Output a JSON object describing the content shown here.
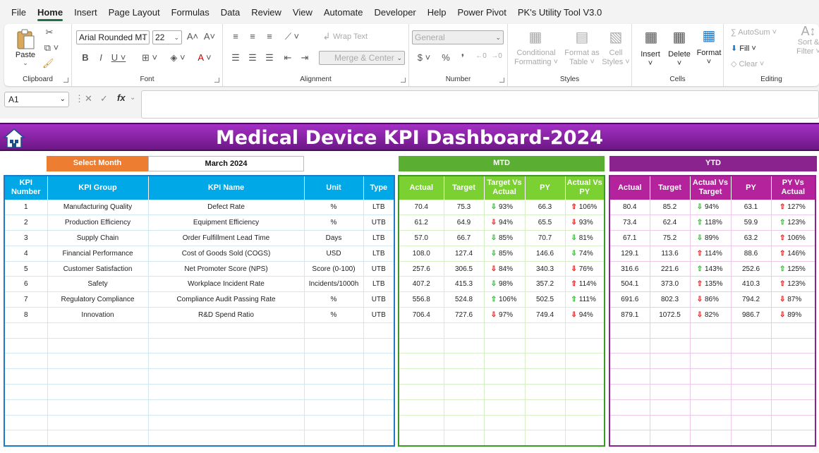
{
  "menu": [
    "File",
    "Home",
    "Insert",
    "Page Layout",
    "Formulas",
    "Data",
    "Review",
    "View",
    "Automate",
    "Developer",
    "Help",
    "Power Pivot",
    "PK's Utility Tool V3.0"
  ],
  "ribbon": {
    "clipboard": {
      "paste": "Paste",
      "label": "Clipboard"
    },
    "font": {
      "name": "Arial Rounded MT",
      "size": "22",
      "label": "Font"
    },
    "alignment": {
      "wrap": "Wrap Text",
      "merge": "Merge & Center",
      "label": "Alignment"
    },
    "number": {
      "format": "General",
      "label": "Number"
    },
    "styles": {
      "cond1": "Conditional",
      "cond2": "Formatting",
      "fat1": "Format as",
      "fat2": "Table",
      "cs1": "Cell",
      "cs2": "Styles",
      "label": "Styles"
    },
    "cells": {
      "insert": "Insert",
      "delete": "Delete",
      "format": "Format",
      "label": "Cells"
    },
    "editing": {
      "autosum": "AutoSum",
      "fill": "Fill",
      "clear": "Clear",
      "sort1": "Sort &",
      "sort2": "Filter",
      "label": "Editing"
    }
  },
  "formula_bar": {
    "name_box": "A1",
    "fx": "fx",
    "formula": ""
  },
  "dashboard": {
    "title": "Medical Device KPI Dashboard-2024",
    "select_month_label": "Select Month",
    "select_month_value": "March 2024",
    "mtd_label": "MTD",
    "ytd_label": "YTD",
    "main_headers": [
      "KPI Number",
      "KPI Group",
      "KPI Name",
      "Unit",
      "Type"
    ],
    "mtd_headers": [
      "Actual",
      "Target",
      "Target Vs Actual",
      "PY",
      "Actual Vs PY"
    ],
    "ytd_headers": [
      "Actual",
      "Target",
      "Actual Vs Target",
      "PY",
      "PY Vs Actual"
    ],
    "colors": {
      "banner": "#8b238e",
      "mtd": "#5aae32",
      "ytd": "#8b238e",
      "main": "#00a8e8",
      "select": "#ed7d31"
    },
    "rows": [
      {
        "num": "1",
        "group": "Manufacturing Quality",
        "name": "Defect Rate",
        "unit": "%",
        "type": "LTB",
        "mtd": {
          "actual": "70.4",
          "target": "75.3",
          "tva": "93%",
          "tva_dir": "down",
          "tva_col": "g",
          "py": "66.3",
          "avp": "106%",
          "avp_dir": "up",
          "avp_col": "r"
        },
        "ytd": {
          "actual": "80.4",
          "target": "85.2",
          "avt": "94%",
          "avt_dir": "down",
          "avt_col": "g",
          "py": "63.1",
          "pva": "127%",
          "pva_dir": "up",
          "pva_col": "r"
        }
      },
      {
        "num": "2",
        "group": "Production Efficiency",
        "name": "Equipment Efficiency",
        "unit": "%",
        "type": "UTB",
        "mtd": {
          "actual": "61.2",
          "target": "64.9",
          "tva": "94%",
          "tva_dir": "down",
          "tva_col": "r",
          "py": "65.5",
          "avp": "93%",
          "avp_dir": "down",
          "avp_col": "r"
        },
        "ytd": {
          "actual": "73.4",
          "target": "62.4",
          "avt": "118%",
          "avt_dir": "up",
          "avt_col": "g",
          "py": "59.9",
          "pva": "123%",
          "pva_dir": "up",
          "pva_col": "g"
        }
      },
      {
        "num": "3",
        "group": "Supply Chain",
        "name": "Order Fulfillment Lead Time",
        "unit": "Days",
        "type": "LTB",
        "mtd": {
          "actual": "57.0",
          "target": "66.7",
          "tva": "85%",
          "tva_dir": "down",
          "tva_col": "g",
          "py": "70.7",
          "avp": "81%",
          "avp_dir": "down",
          "avp_col": "g"
        },
        "ytd": {
          "actual": "67.1",
          "target": "75.2",
          "avt": "89%",
          "avt_dir": "down",
          "avt_col": "g",
          "py": "63.2",
          "pva": "106%",
          "pva_dir": "up",
          "pva_col": "r"
        }
      },
      {
        "num": "4",
        "group": "Financial Performance",
        "name": "Cost of Goods Sold (COGS)",
        "unit": "USD",
        "type": "LTB",
        "mtd": {
          "actual": "108.0",
          "target": "127.4",
          "tva": "85%",
          "tva_dir": "down",
          "tva_col": "g",
          "py": "146.6",
          "avp": "74%",
          "avp_dir": "down",
          "avp_col": "g"
        },
        "ytd": {
          "actual": "129.1",
          "target": "113.6",
          "avt": "114%",
          "avt_dir": "up",
          "avt_col": "r",
          "py": "88.6",
          "pva": "146%",
          "pva_dir": "up",
          "pva_col": "r"
        }
      },
      {
        "num": "5",
        "group": "Customer Satisfaction",
        "name": "Net Promoter Score (NPS)",
        "unit": "Score (0-100)",
        "type": "UTB",
        "mtd": {
          "actual": "257.6",
          "target": "306.5",
          "tva": "84%",
          "tva_dir": "down",
          "tva_col": "r",
          "py": "340.3",
          "avp": "76%",
          "avp_dir": "down",
          "avp_col": "r"
        },
        "ytd": {
          "actual": "316.6",
          "target": "221.6",
          "avt": "143%",
          "avt_dir": "up",
          "avt_col": "g",
          "py": "252.6",
          "pva": "125%",
          "pva_dir": "up",
          "pva_col": "g"
        }
      },
      {
        "num": "6",
        "group": "Safety",
        "name": "Workplace Incident Rate",
        "unit": "Incidents/1000h",
        "type": "LTB",
        "mtd": {
          "actual": "407.2",
          "target": "415.3",
          "tva": "98%",
          "tva_dir": "down",
          "tva_col": "g",
          "py": "357.2",
          "avp": "114%",
          "avp_dir": "up",
          "avp_col": "r"
        },
        "ytd": {
          "actual": "504.1",
          "target": "373.0",
          "avt": "135%",
          "avt_dir": "up",
          "avt_col": "r",
          "py": "410.3",
          "pva": "123%",
          "pva_dir": "up",
          "pva_col": "r"
        }
      },
      {
        "num": "7",
        "group": "Regulatory Compliance",
        "name": "Compliance Audit Passing Rate",
        "unit": "%",
        "type": "UTB",
        "mtd": {
          "actual": "556.8",
          "target": "524.8",
          "tva": "106%",
          "tva_dir": "up",
          "tva_col": "g",
          "py": "502.5",
          "avp": "111%",
          "avp_dir": "up",
          "avp_col": "g"
        },
        "ytd": {
          "actual": "691.6",
          "target": "802.3",
          "avt": "86%",
          "avt_dir": "down",
          "avt_col": "r",
          "py": "794.2",
          "pva": "87%",
          "pva_dir": "down",
          "pva_col": "r"
        }
      },
      {
        "num": "8",
        "group": "Innovation",
        "name": "R&D Spend Ratio",
        "unit": "%",
        "type": "UTB",
        "mtd": {
          "actual": "706.4",
          "target": "727.6",
          "tva": "97%",
          "tva_dir": "down",
          "tva_col": "r",
          "py": "749.4",
          "avp": "94%",
          "avp_dir": "down",
          "avp_col": "r"
        },
        "ytd": {
          "actual": "879.1",
          "target": "1072.5",
          "avt": "82%",
          "avt_dir": "down",
          "avt_col": "r",
          "py": "986.7",
          "pva": "89%",
          "pva_dir": "down",
          "pva_col": "r"
        }
      }
    ]
  }
}
